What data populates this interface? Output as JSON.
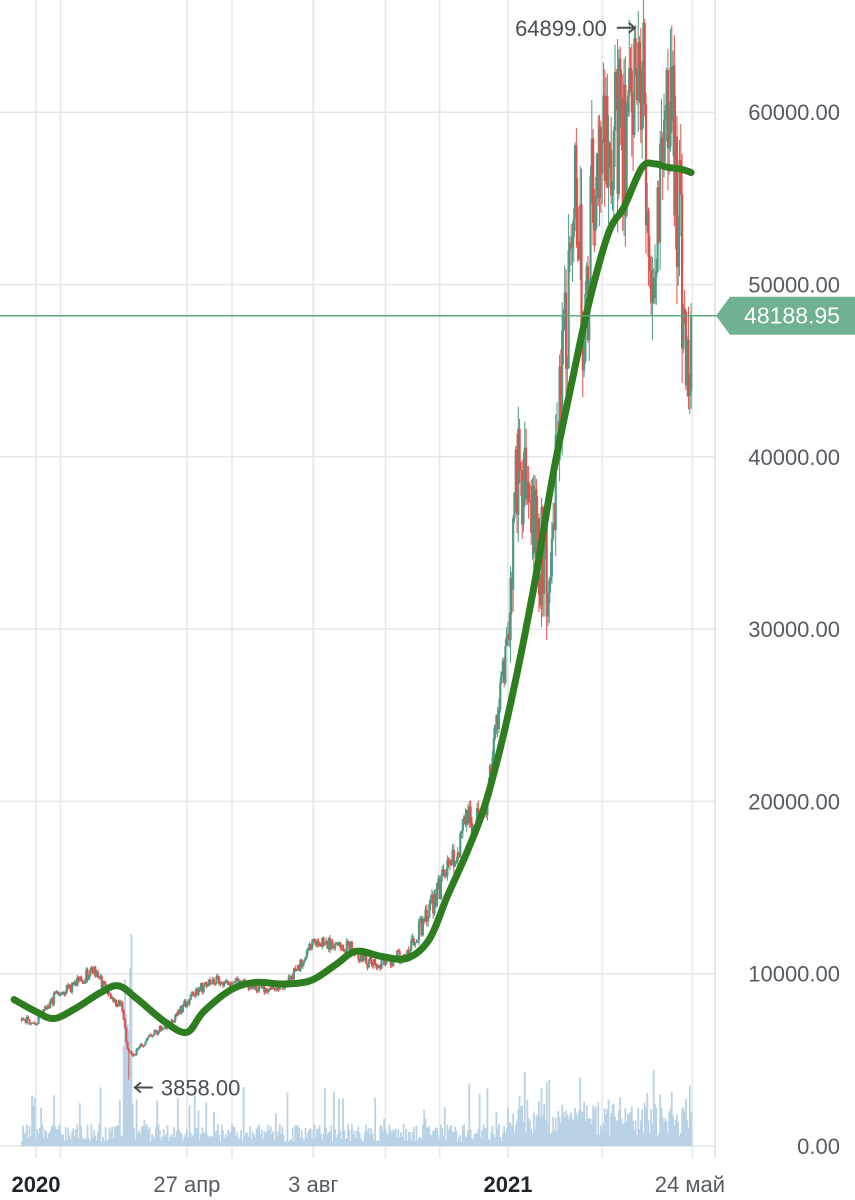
{
  "chart_data": {
    "type": "candlestick",
    "title": "",
    "xlabel": "",
    "ylabel": "",
    "ylim": [
      0,
      66000
    ],
    "x_tick_labels": [
      "2020",
      "27 апр",
      "3 авг",
      "2021",
      "24 май"
    ],
    "y_tick_labels": [
      "0.00",
      "10000.00",
      "20000.00",
      "30000.00",
      "40000.00",
      "50000.00",
      "60000.00"
    ],
    "current_price": 48188.95,
    "current_price_label": "48188.95",
    "max_annotation": {
      "value": 64899.0,
      "label": "64899.00"
    },
    "min_annotation": {
      "value": 3858.0,
      "label": "3858.00"
    },
    "grid": true,
    "series": [
      {
        "kind": "close_price",
        "x": [
          "2019-12-15",
          "2020-01-01",
          "2020-01-15",
          "2020-02-01",
          "2020-02-14",
          "2020-03-01",
          "2020-03-08",
          "2020-03-12",
          "2020-03-16",
          "2020-04-01",
          "2020-04-15",
          "2020-05-01",
          "2020-05-15",
          "2020-06-01",
          "2020-06-15",
          "2020-07-01",
          "2020-07-15",
          "2020-08-01",
          "2020-08-15",
          "2020-09-01",
          "2020-09-15",
          "2020-10-01",
          "2020-10-15",
          "2020-11-01",
          "2020-11-15",
          "2020-12-01",
          "2020-12-15",
          "2021-01-01",
          "2021-01-08",
          "2021-01-15",
          "2021-02-01",
          "2021-02-15",
          "2021-02-21",
          "2021-03-01",
          "2021-03-13",
          "2021-03-20",
          "2021-04-01",
          "2021-04-14",
          "2021-04-25",
          "2021-05-01",
          "2021-05-10",
          "2021-05-19",
          "2021-05-23"
        ],
        "values": [
          7300,
          7200,
          8600,
          9400,
          10200,
          8600,
          8000,
          5600,
          5200,
          6600,
          7100,
          8800,
          9600,
          9500,
          9300,
          9200,
          9500,
          11600,
          11800,
          11600,
          10600,
          10700,
          11300,
          13700,
          16000,
          18800,
          19200,
          29400,
          40000,
          37000,
          33000,
          47000,
          55000,
          48000,
          60000,
          58500,
          58800,
          63000,
          50000,
          57000,
          58000,
          46000,
          48188.95
        ]
      },
      {
        "kind": "moving_average",
        "color": "#2e7d20",
        "x": [
          "2019-12-15",
          "2020-01-01",
          "2020-01-15",
          "2020-02-01",
          "2020-02-20",
          "2020-03-05",
          "2020-03-20",
          "2020-04-10",
          "2020-04-27",
          "2020-05-10",
          "2020-06-01",
          "2020-06-20",
          "2020-07-10",
          "2020-08-01",
          "2020-08-20",
          "2020-09-05",
          "2020-09-25",
          "2020-10-15",
          "2020-11-01",
          "2020-11-15",
          "2020-12-01",
          "2020-12-15",
          "2021-01-01",
          "2021-01-20",
          "2021-02-05",
          "2021-02-20",
          "2021-03-05",
          "2021-03-20",
          "2021-04-01",
          "2021-04-15",
          "2021-04-25",
          "2021-05-05",
          "2021-05-15",
          "2021-05-23"
        ],
        "values": [
          8500,
          7800,
          7400,
          8000,
          8900,
          9300,
          8500,
          7200,
          6600,
          7800,
          9100,
          9500,
          9400,
          9600,
          10500,
          11300,
          11000,
          10900,
          12000,
          14500,
          17200,
          20000,
          25000,
          32000,
          39000,
          44500,
          49000,
          53000,
          54500,
          56800,
          57000,
          56800,
          56700,
          56500
        ]
      }
    ],
    "volume": {
      "name": "volume",
      "ylim_fraction": 0.15
    },
    "colors": {
      "up": "#4e9a82",
      "down": "#e0504a",
      "moving_average": "#2e7d20",
      "price_line": "#5fa882",
      "price_tag": "#6fb190",
      "volume": "#b9d2e6",
      "grid": "#e3e6ea"
    }
  }
}
